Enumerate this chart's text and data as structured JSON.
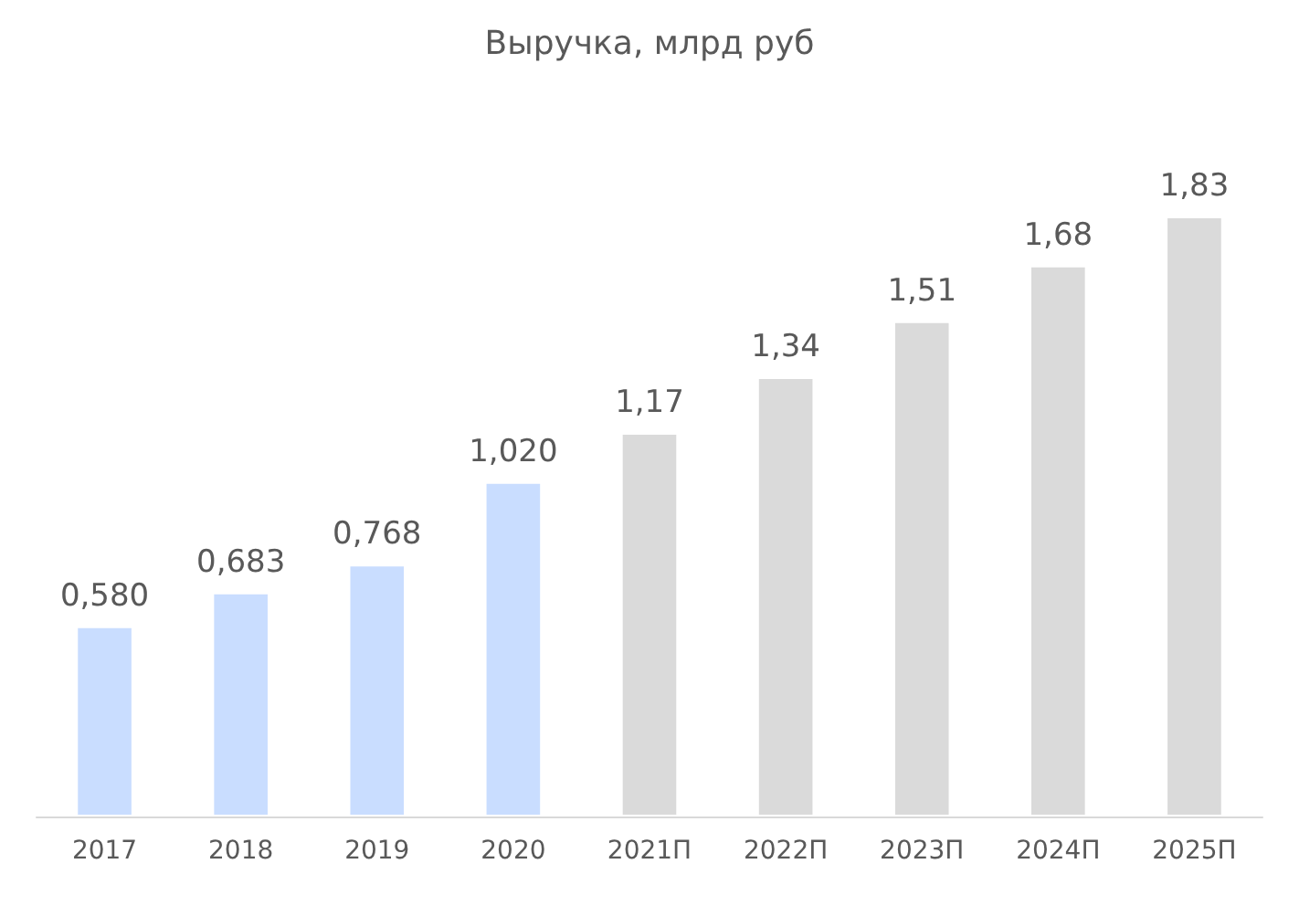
{
  "chart_data": {
    "type": "bar",
    "title": "Выручка, млрд руб",
    "categories": [
      "2017",
      "2018",
      "2019",
      "2020",
      "2021П",
      "2022П",
      "2023П",
      "2024П",
      "2025П"
    ],
    "values": [
      0.58,
      0.683,
      0.768,
      1.02,
      1.17,
      1.34,
      1.51,
      1.68,
      1.83
    ],
    "value_labels": [
      "0,580",
      "0,683",
      "0,768",
      "1,020",
      "1,17",
      "1,34",
      "1,51",
      "1,68",
      "1,83"
    ],
    "colors": [
      "#c9ddff",
      "#c9ddff",
      "#c9ddff",
      "#c9ddff",
      "#dadada",
      "#dadada",
      "#dadada",
      "#dadada",
      "#dadada"
    ],
    "tick_labels": "x"
  }
}
